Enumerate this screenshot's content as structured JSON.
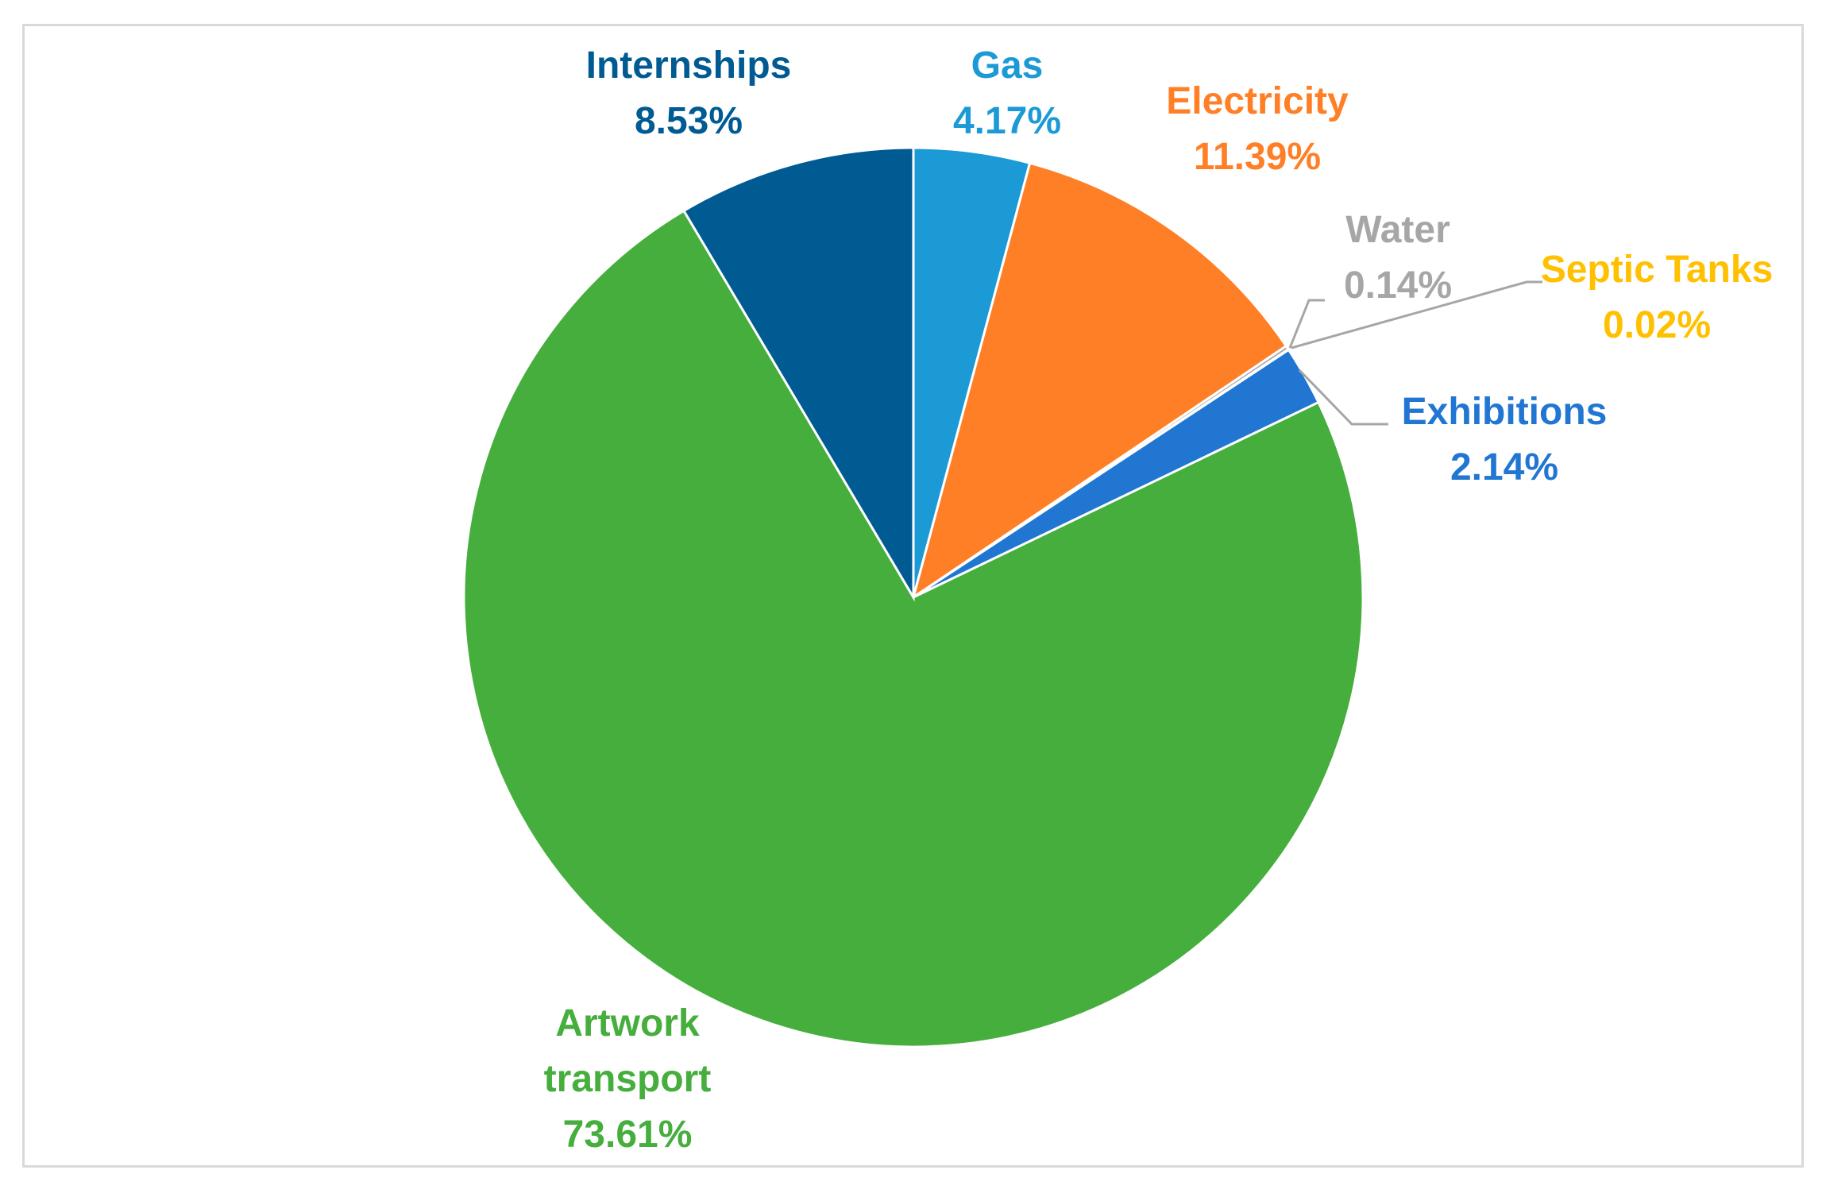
{
  "chart_data": {
    "type": "pie",
    "start_angle_deg": 0,
    "direction": "clockwise",
    "slices": [
      {
        "label": [
          "Gas"
        ],
        "percent_text": "4.17%",
        "value": 4.17,
        "color": "#1B9AD6"
      },
      {
        "label": [
          "Electricity"
        ],
        "percent_text": "11.39%",
        "value": 11.39,
        "color": "#FF7F27"
      },
      {
        "label": [
          "Water"
        ],
        "percent_text": "0.14%",
        "value": 0.14,
        "color": "#A6A6A6"
      },
      {
        "label": [
          "Septic Tanks"
        ],
        "percent_text": "0.02%",
        "value": 0.02,
        "color": "#FFC000"
      },
      {
        "label": [
          "Exhibitions"
        ],
        "percent_text": "2.14%",
        "value": 2.14,
        "color": "#2176D2"
      },
      {
        "label": [
          "Artwork",
          "transport"
        ],
        "percent_text": "73.61%",
        "value": 73.61,
        "color": "#45AE3C"
      },
      {
        "label": [
          "Internships"
        ],
        "percent_text": "8.53%",
        "value": 8.53,
        "color": "#005B93"
      }
    ],
    "label_colors": {
      "Water": "#A6A6A6"
    }
  }
}
